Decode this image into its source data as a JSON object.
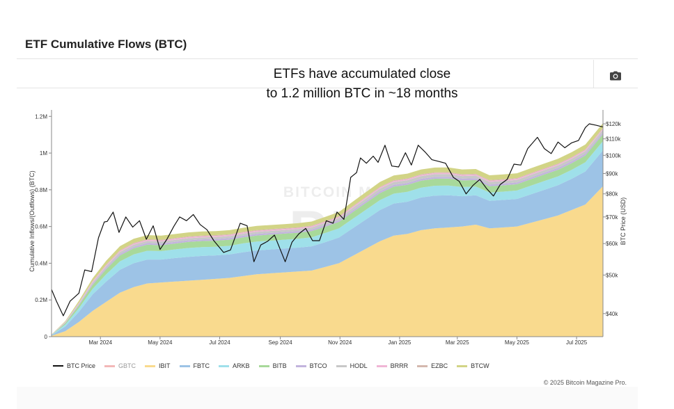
{
  "page": {
    "title": "ETF Cumulative Flows (BTC)",
    "credits": "© 2025 Bitcoin Magazine Pro."
  },
  "icons": {
    "camera": "camera-icon"
  },
  "watermark": {
    "line1": "BITCOIN MAGAZINE",
    "line2": "PRO"
  },
  "chart_data": {
    "type": "area",
    "title_lines": [
      "ETFs have accumulated close",
      "to 1.2 million BTC in ~18 months"
    ],
    "ylabel": "Cumulative Inflows/(Outflows) (BTC)",
    "ylabel_right": "BTC Price (USD)",
    "x_range": [
      "2024-01-11",
      "2025-07-28"
    ],
    "ylim": [
      0,
      1220000
    ],
    "y_ticks": [
      0,
      200000,
      400000,
      600000,
      800000,
      1000000,
      1200000
    ],
    "y_tick_labels": [
      "0",
      "0.2M",
      "0.4M",
      "0.6M",
      "0.8M",
      "1M",
      "1.2M"
    ],
    "y2_scale": "log",
    "y2lim": [
      35000,
      128000
    ],
    "y2_ticks": [
      40000,
      50000,
      60000,
      70000,
      80000,
      90000,
      100000,
      110000,
      120000
    ],
    "y2_tick_labels": [
      "$40k",
      "$50k",
      "$60k",
      "$70k",
      "$80k",
      "$90k",
      "$100k",
      "$110k",
      "$120k"
    ],
    "x_ticks": [
      "2024-03-01",
      "2024-05-01",
      "2024-07-01",
      "2024-09-01",
      "2024-11-01",
      "2025-01-01",
      "2025-03-01",
      "2025-05-01",
      "2025-07-01"
    ],
    "x_tick_labels": [
      "Mar 2024",
      "May 2024",
      "Jul 2024",
      "Sep 2024",
      "Nov 2024",
      "Jan 2025",
      "Mar 2025",
      "May 2025",
      "Jul 2025"
    ],
    "legend_position": "bottom",
    "grid": false,
    "x": [
      "2024-01-11",
      "2024-01-25",
      "2024-02-08",
      "2024-02-22",
      "2024-03-07",
      "2024-03-21",
      "2024-04-04",
      "2024-04-18",
      "2024-05-02",
      "2024-05-16",
      "2024-05-30",
      "2024-06-13",
      "2024-06-27",
      "2024-07-11",
      "2024-07-25",
      "2024-08-08",
      "2024-08-22",
      "2024-09-05",
      "2024-09-19",
      "2024-10-03",
      "2024-10-17",
      "2024-10-31",
      "2024-11-14",
      "2024-11-28",
      "2024-12-12",
      "2024-12-26",
      "2025-01-09",
      "2025-01-23",
      "2025-02-06",
      "2025-02-20",
      "2025-03-06",
      "2025-03-20",
      "2025-04-03",
      "2025-04-17",
      "2025-05-01",
      "2025-05-15",
      "2025-05-29",
      "2025-06-12",
      "2025-06-26",
      "2025-07-10",
      "2025-07-28"
    ],
    "series": [
      {
        "name": "IBIT",
        "color": "#f9da8e",
        "values": [
          5000,
          30000,
          80000,
          140000,
          190000,
          240000,
          270000,
          290000,
          295000,
          300000,
          305000,
          310000,
          315000,
          320000,
          330000,
          340000,
          345000,
          350000,
          355000,
          360000,
          380000,
          400000,
          440000,
          480000,
          520000,
          550000,
          560000,
          580000,
          590000,
          595000,
          600000,
          610000,
          590000,
          595000,
          600000,
          620000,
          640000,
          660000,
          690000,
          720000,
          820000
        ]
      },
      {
        "name": "FBTC",
        "color": "#9dc3e6",
        "values": [
          3000,
          25000,
          55000,
          90000,
          110000,
          125000,
          130000,
          130000,
          125000,
          128000,
          130000,
          130000,
          128000,
          128000,
          130000,
          130000,
          130000,
          130000,
          130000,
          132000,
          135000,
          140000,
          150000,
          160000,
          170000,
          175000,
          175000,
          178000,
          178000,
          175000,
          165000,
          160000,
          150000,
          150000,
          150000,
          155000,
          160000,
          165000,
          170000,
          180000,
          195000
        ]
      },
      {
        "name": "ARKB",
        "color": "#9fe0ea",
        "values": [
          1000,
          10000,
          20000,
          30000,
          40000,
          45000,
          48000,
          48000,
          46000,
          47000,
          48000,
          48000,
          47000,
          47000,
          48000,
          48000,
          48000,
          48000,
          48000,
          49000,
          50000,
          50000,
          52000,
          53000,
          54000,
          54000,
          54000,
          54000,
          54000,
          53000,
          50000,
          48000,
          45000,
          45000,
          46000,
          47000,
          48000,
          48000,
          49000,
          50000,
          50000
        ]
      },
      {
        "name": "BITB",
        "color": "#a8d99a",
        "values": [
          1000,
          8000,
          15000,
          22000,
          28000,
          32000,
          33000,
          33000,
          32000,
          32000,
          33000,
          33000,
          33000,
          33000,
          33000,
          33000,
          33000,
          33000,
          33000,
          34000,
          34000,
          35000,
          36000,
          37000,
          38000,
          38000,
          38000,
          38000,
          38000,
          38000,
          36000,
          35000,
          34000,
          34000,
          34000,
          35000,
          35000,
          36000,
          36000,
          37000,
          38000
        ]
      },
      {
        "name": "BTCO",
        "color": "#c2b4dd",
        "values": [
          500,
          3000,
          5000,
          7000,
          8000,
          9000,
          9000,
          9000,
          9000,
          9000,
          9000,
          9000,
          9000,
          9000,
          9000,
          9000,
          9000,
          9000,
          9000,
          9000,
          9000,
          9000,
          10000,
          10000,
          10000,
          10000,
          10000,
          10000,
          10000,
          10000,
          10000,
          10000,
          10000,
          10000,
          10000,
          10000,
          10000,
          10000,
          10000,
          10000,
          10000
        ]
      },
      {
        "name": "HODL",
        "color": "#c8c8c8",
        "values": [
          500,
          2000,
          4000,
          6000,
          8000,
          10000,
          11000,
          11000,
          11000,
          11000,
          11000,
          11000,
          11000,
          11000,
          11000,
          11000,
          11000,
          11000,
          11000,
          11000,
          12000,
          12000,
          13000,
          14000,
          15000,
          15000,
          15000,
          15000,
          15000,
          15000,
          14000,
          14000,
          14000,
          14000,
          14000,
          14000,
          14000,
          14000,
          14000,
          14000,
          14000
        ]
      },
      {
        "name": "BRRR",
        "color": "#f0b6d6",
        "values": [
          500,
          2000,
          4000,
          5000,
          6000,
          6000,
          6000,
          6000,
          6000,
          6000,
          6000,
          6000,
          6000,
          6000,
          6000,
          6000,
          6000,
          6000,
          6000,
          6000,
          6000,
          6000,
          6000,
          6000,
          6000,
          6000,
          6000,
          6000,
          6000,
          6000,
          6000,
          6000,
          6000,
          6000,
          6000,
          6000,
          6000,
          6000,
          6000,
          6000,
          6000
        ]
      },
      {
        "name": "EZBC",
        "color": "#d4b8ae",
        "values": [
          200,
          1000,
          2000,
          3000,
          4000,
          4000,
          4000,
          4000,
          4000,
          4000,
          4000,
          4000,
          4000,
          4000,
          4000,
          4000,
          4000,
          4000,
          4000,
          4000,
          4000,
          4000,
          4000,
          4000,
          4000,
          4000,
          4000,
          4000,
          4000,
          4000,
          4000,
          4000,
          4000,
          4000,
          4000,
          4000,
          4000,
          4000,
          4000,
          4000,
          4000
        ]
      },
      {
        "name": "BTCW",
        "color": "#d2d486",
        "values": [
          300,
          4000,
          10000,
          15000,
          20000,
          22000,
          22000,
          22000,
          22000,
          22000,
          22000,
          22000,
          22000,
          22000,
          22000,
          22000,
          22000,
          22000,
          22000,
          22000,
          23000,
          23000,
          24000,
          25000,
          26000,
          26000,
          26000,
          26000,
          26000,
          26000,
          26000,
          26000,
          26000,
          26000,
          26000,
          26000,
          26000,
          26000,
          26000,
          26000,
          26000
        ]
      }
    ],
    "legend": [
      {
        "name": "BTC Price",
        "color": "#111111",
        "muted": false
      },
      {
        "name": "GBTC",
        "color": "#f3b8b8",
        "muted": true
      },
      {
        "name": "IBIT",
        "color": "#f9da8e",
        "muted": false
      },
      {
        "name": "FBTC",
        "color": "#9dc3e6",
        "muted": false
      },
      {
        "name": "ARKB",
        "color": "#9fe0ea",
        "muted": false
      },
      {
        "name": "BITB",
        "color": "#a8d99a",
        "muted": false
      },
      {
        "name": "BTCO",
        "color": "#c2b4dd",
        "muted": false
      },
      {
        "name": "HODL",
        "color": "#c8c8c8",
        "muted": false
      },
      {
        "name": "BRRR",
        "color": "#f0b6d6",
        "muted": false
      },
      {
        "name": "EZBC",
        "color": "#d4b8ae",
        "muted": false
      },
      {
        "name": "BTCW",
        "color": "#d2d486",
        "muted": false
      }
    ],
    "btc_price": {
      "name": "BTC Price",
      "color": "#111111",
      "dates": [
        "2024-01-11",
        "2024-01-16",
        "2024-01-23",
        "2024-01-30",
        "2024-02-08",
        "2024-02-14",
        "2024-02-21",
        "2024-02-28",
        "2024-03-05",
        "2024-03-08",
        "2024-03-14",
        "2024-03-20",
        "2024-03-27",
        "2024-04-03",
        "2024-04-10",
        "2024-04-17",
        "2024-04-24",
        "2024-05-01",
        "2024-05-08",
        "2024-05-15",
        "2024-05-21",
        "2024-05-28",
        "2024-06-04",
        "2024-06-11",
        "2024-06-18",
        "2024-06-25",
        "2024-07-05",
        "2024-07-12",
        "2024-07-22",
        "2024-07-29",
        "2024-08-05",
        "2024-08-12",
        "2024-08-19",
        "2024-08-26",
        "2024-09-06",
        "2024-09-13",
        "2024-09-20",
        "2024-09-27",
        "2024-10-04",
        "2024-10-11",
        "2024-10-18",
        "2024-10-25",
        "2024-10-29",
        "2024-11-05",
        "2024-11-08",
        "2024-11-12",
        "2024-11-18",
        "2024-11-22",
        "2024-11-28",
        "2024-12-05",
        "2024-12-10",
        "2024-12-17",
        "2024-12-24",
        "2024-12-31",
        "2025-01-07",
        "2025-01-13",
        "2025-01-20",
        "2025-01-27",
        "2025-02-03",
        "2025-02-10",
        "2025-02-17",
        "2025-02-25",
        "2025-03-03",
        "2025-03-10",
        "2025-03-17",
        "2025-03-24",
        "2025-03-31",
        "2025-04-07",
        "2025-04-14",
        "2025-04-21",
        "2025-04-28",
        "2025-05-05",
        "2025-05-12",
        "2025-05-22",
        "2025-05-29",
        "2025-06-05",
        "2025-06-12",
        "2025-06-19",
        "2025-06-26",
        "2025-07-03",
        "2025-07-10",
        "2025-07-14",
        "2025-07-21",
        "2025-07-28"
      ],
      "values": [
        46000,
        43000,
        39500,
        43000,
        45000,
        51500,
        51000,
        62000,
        68000,
        68200,
        72000,
        64000,
        70000,
        66000,
        68500,
        61500,
        66500,
        58000,
        61500,
        66200,
        70000,
        68500,
        71000,
        67000,
        65000,
        61000,
        57000,
        57800,
        67500,
        66500,
        54000,
        59500,
        60800,
        63000,
        54000,
        60500,
        63500,
        65500,
        61000,
        61000,
        68500,
        67500,
        72000,
        69000,
        76500,
        88000,
        90500,
        98500,
        95500,
        99500,
        96000,
        106000,
        94000,
        93500,
        101500,
        94500,
        106000,
        102000,
        97500,
        96500,
        95500,
        88000,
        86000,
        80000,
        84000,
        87000,
        82500,
        79000,
        84500,
        87000,
        95000,
        94500,
        104000,
        111000,
        104000,
        101000,
        108000,
        104500,
        107500,
        109000,
        117500,
        120000,
        119000,
        117800
      ]
    }
  }
}
